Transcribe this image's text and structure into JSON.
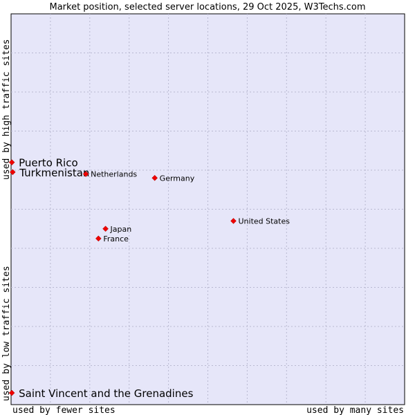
{
  "chart_data": {
    "type": "scatter",
    "title": "Market position, selected server locations, 29 Oct 2025, W3Techs.com",
    "xlabel_left": "used by fewer sites",
    "xlabel_right": "used by many sites",
    "ylabel_bottom": "used by low traffic sites",
    "ylabel_top": "used by high traffic sites",
    "xlim": [
      0,
      100
    ],
    "ylim": [
      0,
      100
    ],
    "grid": true,
    "points": [
      {
        "name": "Puerto Rico",
        "x": 0.2,
        "y": 62.0,
        "label_size": "large"
      },
      {
        "name": "Turkmenistan",
        "x": 0.4,
        "y": 59.5,
        "label_size": "large"
      },
      {
        "name": "Netherlands",
        "x": 19.0,
        "y": 59.0,
        "label_size": "small"
      },
      {
        "name": "Germany",
        "x": 36.5,
        "y": 58.0,
        "label_size": "small"
      },
      {
        "name": "United States",
        "x": 56.5,
        "y": 47.0,
        "label_size": "small"
      },
      {
        "name": "Japan",
        "x": 24.0,
        "y": 45.0,
        "label_size": "small"
      },
      {
        "name": "France",
        "x": 22.2,
        "y": 42.5,
        "label_size": "small"
      },
      {
        "name": "Saint Vincent and the Grenadines",
        "x": 0.2,
        "y": 3.0,
        "label_size": "large"
      }
    ]
  },
  "colors": {
    "plot_background": "#e6e6f9",
    "grid": "#b8b8d0",
    "point": "#ee0000",
    "text": "#000000"
  }
}
